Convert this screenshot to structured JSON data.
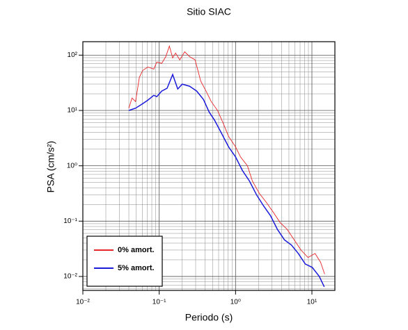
{
  "chart_data": {
    "type": "line",
    "title": "Sitio SIAC",
    "x_label": "Periodo (s)",
    "y_label": "PSA (cm/s²)",
    "log_x": true,
    "log_y": true,
    "grid": true,
    "legend": "lower-left",
    "xlim": [
      0.01,
      20
    ],
    "ylim": [
      0.0056,
      175
    ],
    "xticks": [
      {
        "value": 0.01,
        "label": "10⁻²"
      },
      {
        "value": 0.1,
        "label": "10⁻¹"
      },
      {
        "value": 1,
        "label": "10⁰"
      },
      {
        "value": 10,
        "label": "10¹"
      }
    ],
    "yticks": [
      {
        "value": 0.01,
        "label": "10⁻²"
      },
      {
        "value": 0.1,
        "label": "10⁻¹"
      },
      {
        "value": 1,
        "label": "10⁰"
      },
      {
        "value": 10,
        "label": "10¹"
      },
      {
        "value": 100,
        "label": "10²"
      }
    ],
    "series": [
      {
        "name": "0% amort.",
        "color": "#e8262a",
        "x": [
          0.04,
          0.044,
          0.049,
          0.055,
          0.061,
          0.071,
          0.085,
          0.093,
          0.108,
          0.122,
          0.136,
          0.15,
          0.164,
          0.186,
          0.216,
          0.25,
          0.295,
          0.35,
          0.41,
          0.48,
          0.58,
          0.68,
          0.81,
          1.0,
          1.16,
          1.43,
          1.66,
          2.04,
          2.52,
          3.11,
          3.84,
          4.74,
          5.85,
          7.2,
          8.9,
          11.0,
          13.0,
          14.7
        ],
        "values": [
          11,
          16.8,
          14.5,
          39.8,
          53,
          61,
          56,
          75,
          71,
          94,
          146,
          89,
          109,
          82,
          115,
          94,
          82,
          34,
          22.4,
          14.5,
          10,
          6.1,
          3.4,
          2.2,
          1.45,
          1.0,
          0.53,
          0.32,
          0.22,
          0.145,
          0.094,
          0.071,
          0.046,
          0.03,
          0.022,
          0.026,
          0.018,
          0.011
        ]
      },
      {
        "name": "5% amort.",
        "color": "#1a1adb",
        "x": [
          0.04,
          0.049,
          0.061,
          0.071,
          0.085,
          0.093,
          0.108,
          0.127,
          0.15,
          0.175,
          0.2,
          0.25,
          0.31,
          0.38,
          0.45,
          0.53,
          0.66,
          0.81,
          1.0,
          1.23,
          1.52,
          1.88,
          2.32,
          2.86,
          3.53,
          4.36,
          5.38,
          6.64,
          8.2,
          10.1,
          12.5,
          14.5
        ],
        "values": [
          10,
          11,
          13.3,
          15.4,
          18.8,
          17.8,
          22.4,
          25.2,
          44.7,
          24.4,
          29.9,
          27.4,
          22.4,
          15.8,
          9.4,
          6.7,
          3.8,
          2.2,
          1.45,
          0.82,
          0.53,
          0.3,
          0.19,
          0.126,
          0.071,
          0.046,
          0.037,
          0.026,
          0.0168,
          0.0146,
          0.01,
          0.0065
        ]
      }
    ]
  }
}
